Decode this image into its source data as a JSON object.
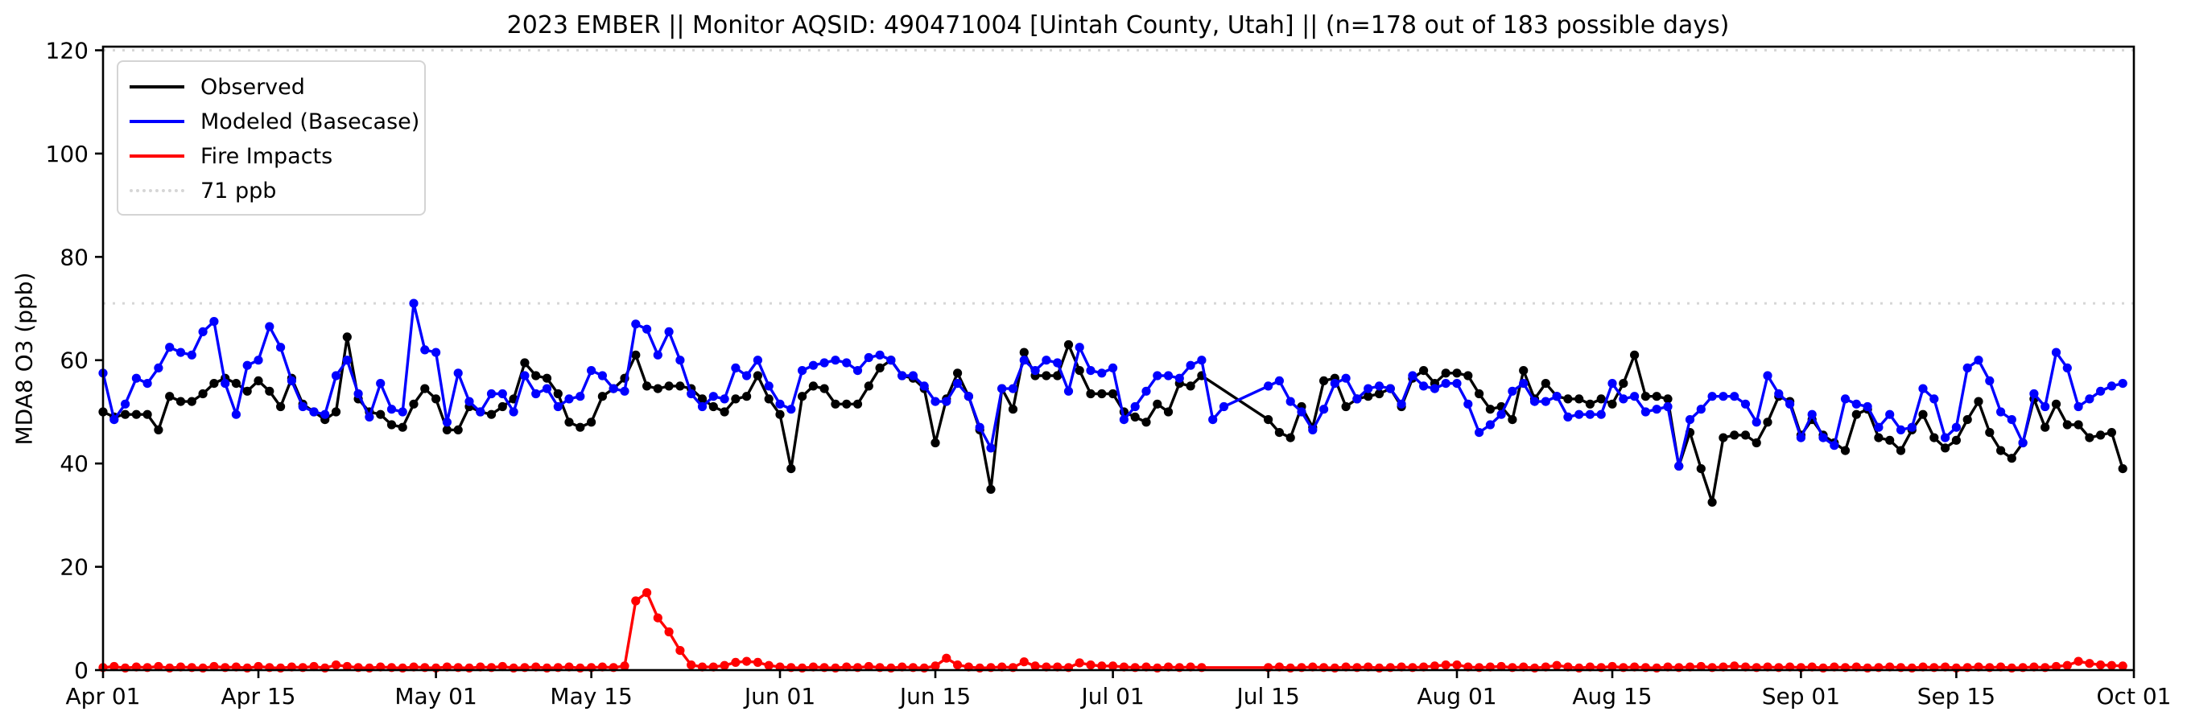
{
  "chart_data": {
    "type": "line",
    "title": "2023 EMBER || Monitor AQSID: 490471004 [Uintah County, Utah] || (n=178 out of 183 possible days)",
    "ylabel": "MDA8 O3 (ppb)",
    "xlabel": "",
    "ylim": [
      0,
      120
    ],
    "y_ticks": [
      0,
      20,
      40,
      60,
      80,
      100,
      120
    ],
    "x_tick_labels": [
      "Apr 01",
      "Apr 15",
      "May 01",
      "May 15",
      "Jun 01",
      "Jun 15",
      "Jul 01",
      "Jul 15",
      "Aug 01",
      "Aug 15",
      "Sep 01",
      "Sep 15",
      "Oct 01"
    ],
    "x_tick_day_offsets": [
      0,
      14,
      30,
      44,
      61,
      75,
      91,
      105,
      122,
      136,
      153,
      167,
      183
    ],
    "x_start": "2023-04-01",
    "x_freq": "daily",
    "n_days": 183,
    "n_observed_days": 178,
    "grid": false,
    "legend_position": "upper left",
    "threshold": {
      "label": "71 ppb",
      "value": 71,
      "color": "#d6d6d6"
    },
    "series": [
      {
        "name": "Observed",
        "color": "#000000",
        "marker": "circle",
        "values": [
          50,
          49,
          49.5,
          49.5,
          49.5,
          46.5,
          53,
          52,
          52,
          53.5,
          55.5,
          56.5,
          55.5,
          54,
          56,
          54,
          51,
          56.5,
          51.5,
          50,
          48.5,
          50,
          64.5,
          52.5,
          50,
          49.5,
          47.5,
          47,
          51.5,
          54.5,
          52.5,
          46.5,
          46.5,
          51,
          50,
          49.5,
          51,
          52.5,
          59.5,
          57,
          56.5,
          53.5,
          48,
          47,
          48,
          53,
          54.5,
          56.5,
          61,
          55,
          54.5,
          55,
          55,
          54.5,
          52.5,
          51,
          50,
          52.5,
          53,
          57,
          52.5,
          49.5,
          39,
          53,
          55,
          54.5,
          51.5,
          51.5,
          51.5,
          55,
          58.5,
          60,
          57,
          56.5,
          54.5,
          44,
          52.5,
          57.5,
          53,
          46.5,
          35,
          54.5,
          50.5,
          61.5,
          57,
          57,
          57,
          63,
          58,
          53.5,
          53.5,
          53.5,
          50,
          49,
          48,
          51.5,
          50,
          55.5,
          55,
          57,
          null,
          null,
          null,
          null,
          null,
          48.5,
          46,
          45,
          51,
          47,
          56,
          56.5,
          51,
          52.5,
          53,
          53.5,
          54.5,
          51,
          56.5,
          58,
          55.5,
          57.5,
          57.5,
          57,
          53.5,
          50.5,
          51,
          48.5,
          58,
          52.5,
          55.5,
          53,
          52.5,
          52.5,
          51.5,
          52.5,
          51.5,
          55.5,
          61,
          53,
          53,
          52.5,
          39.5,
          46,
          39,
          32.5,
          45,
          45.5,
          45.5,
          44,
          48,
          53,
          52,
          45.5,
          48.5,
          45.5,
          44,
          42.5,
          49.5,
          50.5,
          45,
          44.5,
          42.5,
          46.5,
          49.5,
          45,
          43,
          44.5,
          48.5,
          52,
          46,
          42.5,
          41,
          44,
          52.5,
          47,
          51.5,
          47.5,
          47.5,
          45,
          45.5,
          46,
          39
        ]
      },
      {
        "name": "Modeled (Basecase)",
        "color": "#0000ff",
        "marker": "circle",
        "values": [
          57.5,
          48.5,
          51.5,
          56.5,
          55.5,
          58.5,
          62.5,
          61.5,
          61,
          65.5,
          67.5,
          55.5,
          49.5,
          59,
          60,
          66.5,
          62.5,
          56,
          51,
          50,
          49.5,
          57,
          60,
          53.5,
          49,
          55.5,
          50.5,
          50,
          71,
          62,
          61.5,
          48,
          57.5,
          52,
          50,
          53.5,
          53.5,
          50,
          57,
          53.5,
          54.5,
          51,
          52.5,
          53,
          58,
          57,
          54.5,
          54,
          67,
          66,
          61,
          65.5,
          60,
          53.5,
          51,
          53,
          52.5,
          58.5,
          57,
          60,
          55,
          51.5,
          50.5,
          58,
          59,
          59.5,
          60,
          59.5,
          58,
          60.5,
          61,
          60,
          57,
          57,
          55,
          52,
          52,
          55.5,
          53,
          47,
          43,
          54.5,
          54.5,
          60,
          58,
          60,
          59.5,
          54,
          62.5,
          58,
          57.5,
          58.5,
          48.5,
          51,
          54,
          57,
          57,
          56.5,
          59,
          60,
          48.5,
          51,
          null,
          null,
          null,
          55,
          56,
          52,
          50,
          46.5,
          50.5,
          55.5,
          56.5,
          52.5,
          54.5,
          55,
          54.5,
          51.5,
          57,
          55,
          54.5,
          55.5,
          55.5,
          51.5,
          46,
          47.5,
          49.5,
          54,
          55.5,
          52,
          52,
          53,
          49,
          49.5,
          49.5,
          49.5,
          55.5,
          52.5,
          53,
          50,
          50.5,
          51,
          39.5,
          48.5,
          50.5,
          53,
          53,
          53,
          51.5,
          48,
          57,
          53.5,
          51.5,
          45,
          49.5,
          45,
          43.5,
          52.5,
          51.5,
          51,
          47,
          49.5,
          46.5,
          47,
          54.5,
          52.5,
          45,
          47,
          58.5,
          60,
          56,
          50,
          48.5,
          44,
          53.5,
          51,
          61.5,
          58.5,
          51,
          52.5,
          54,
          55,
          55.5
        ]
      },
      {
        "name": "Fire Impacts",
        "color": "#ff0000",
        "marker": "circle",
        "values": [
          0.5,
          0.7,
          0.4,
          0.6,
          0.5,
          0.7,
          0.4,
          0.6,
          0.5,
          0.4,
          0.7,
          0.5,
          0.6,
          0.4,
          0.7,
          0.5,
          0.4,
          0.6,
          0.5,
          0.7,
          0.4,
          1.0,
          0.7,
          0.5,
          0.4,
          0.6,
          0.5,
          0.4,
          0.6,
          0.5,
          0.4,
          0.6,
          0.5,
          0.4,
          0.6,
          0.5,
          0.7,
          0.4,
          0.5,
          0.6,
          0.4,
          0.5,
          0.6,
          0.4,
          0.5,
          0.6,
          0.5,
          0.8,
          13.4,
          15,
          10.1,
          7.4,
          3.8,
          1,
          0.6,
          0.6,
          0.9,
          1.5,
          1.7,
          1.5,
          0.9,
          0.6,
          0.5,
          0.4,
          0.6,
          0.5,
          0.4,
          0.6,
          0.5,
          0.7,
          0.5,
          0.4,
          0.6,
          0.5,
          0.4,
          0.8,
          2.3,
          1,
          0.6,
          0.4,
          0.5,
          0.6,
          0.5,
          1.6,
          0.8,
          0.6,
          0.6,
          0.5,
          1.4,
          1,
          0.8,
          0.8,
          0.6,
          0.5,
          0.6,
          0.4,
          0.6,
          0.5,
          0.6,
          0.5,
          null,
          null,
          null,
          null,
          null,
          0.5,
          0.6,
          0.4,
          0.5,
          0.6,
          0.5,
          0.4,
          0.6,
          0.5,
          0.6,
          0.4,
          0.5,
          0.6,
          0.5,
          0.6,
          0.8,
          1,
          1,
          0.6,
          0.5,
          0.6,
          0.7,
          0.5,
          0.6,
          0.4,
          0.6,
          0.9,
          0.6,
          0.4,
          0.6,
          0.5,
          0.7,
          0.5,
          0.6,
          0.5,
          0.4,
          0.6,
          0.5,
          0.6,
          0.7,
          0.5,
          0.6,
          0.8,
          0.6,
          0.5,
          0.6,
          0.5,
          0.6,
          0.5,
          0.6,
          0.4,
          0.6,
          0.5,
          0.6,
          0.4,
          0.5,
          0.6,
          0.5,
          0.4,
          0.6,
          0.5,
          0.6,
          0.4,
          0.5,
          0.6,
          0.5,
          0.6,
          0.4,
          0.5,
          0.6,
          0.5,
          0.7,
          0.9,
          1.7,
          1.3,
          1,
          0.9,
          0.8
        ]
      }
    ]
  }
}
